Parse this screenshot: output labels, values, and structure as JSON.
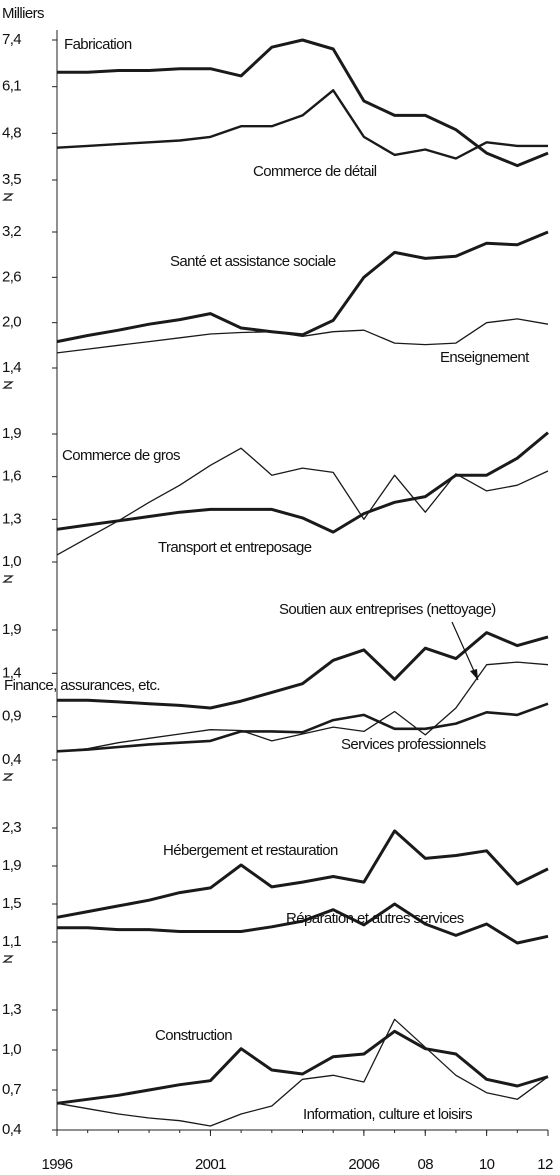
{
  "y_unit": "Milliers",
  "chart_data": [
    {
      "type": "line",
      "x": [
        1996,
        1997,
        1998,
        1999,
        2000,
        2001,
        2002,
        2003,
        2004,
        2005,
        2006,
        2007,
        2008,
        2009,
        2010,
        2011,
        2012
      ],
      "ylim": [
        3.5,
        7.4
      ],
      "yticks": [
        {
          "value": 3.5,
          "label": "3,5"
        },
        {
          "value": 4.8,
          "label": "4,8"
        },
        {
          "value": 6.1,
          "label": "6,1"
        },
        {
          "value": 7.4,
          "label": "7,4"
        }
      ],
      "series": [
        {
          "name": "Fabrication",
          "color": "#1a1a1a",
          "linewidth": 3,
          "values": [
            6.5,
            6.5,
            6.55,
            6.55,
            6.6,
            6.6,
            6.4,
            7.2,
            7.4,
            7.15,
            5.7,
            5.3,
            5.3,
            4.9,
            4.25,
            3.9,
            4.25
          ]
        },
        {
          "name": "Commerce de détail",
          "color": "#1a1a1a",
          "linewidth": 2.4,
          "values": [
            4.4,
            4.45,
            4.5,
            4.55,
            4.6,
            4.7,
            5.0,
            5.0,
            5.3,
            6.0,
            4.7,
            4.2,
            4.35,
            4.1,
            4.55,
            4.45,
            4.45
          ]
        }
      ]
    },
    {
      "type": "line",
      "x": [
        1996,
        1997,
        1998,
        1999,
        2000,
        2001,
        2002,
        2003,
        2004,
        2005,
        2006,
        2007,
        2008,
        2009,
        2010,
        2011,
        2012
      ],
      "ylim": [
        1.4,
        3.2
      ],
      "yticks": [
        {
          "value": 1.4,
          "label": "1,4"
        },
        {
          "value": 2.0,
          "label": "2,0"
        },
        {
          "value": 2.6,
          "label": "2,6"
        },
        {
          "value": 3.2,
          "label": "3,2"
        }
      ],
      "series": [
        {
          "name": "Santé et assistance sociale",
          "color": "#1a1a1a",
          "linewidth": 3,
          "values": [
            1.75,
            1.83,
            1.9,
            1.98,
            2.04,
            2.12,
            1.93,
            1.88,
            1.84,
            2.03,
            2.6,
            2.93,
            2.85,
            2.88,
            3.05,
            3.03,
            3.2
          ]
        },
        {
          "name": "Enseignement",
          "color": "#1a1a1a",
          "linewidth": 1.3,
          "values": [
            1.6,
            1.65,
            1.7,
            1.75,
            1.8,
            1.85,
            1.87,
            1.88,
            1.82,
            1.88,
            1.9,
            1.73,
            1.71,
            1.73,
            2.0,
            2.05,
            1.98
          ]
        }
      ]
    },
    {
      "type": "line",
      "x": [
        1996,
        1997,
        1998,
        1999,
        2000,
        2001,
        2002,
        2003,
        2004,
        2005,
        2006,
        2007,
        2008,
        2009,
        2010,
        2011,
        2012
      ],
      "ylim": [
        1.0,
        1.9
      ],
      "yticks": [
        {
          "value": 1.0,
          "label": "1,0"
        },
        {
          "value": 1.3,
          "label": "1,3"
        },
        {
          "value": 1.6,
          "label": "1,6"
        },
        {
          "value": 1.9,
          "label": "1,9"
        }
      ],
      "series": [
        {
          "name": "Commerce de gros",
          "color": "#1a1a1a",
          "linewidth": 1.3,
          "values": [
            1.05,
            1.17,
            1.29,
            1.42,
            1.54,
            1.68,
            1.8,
            1.61,
            1.66,
            1.63,
            1.3,
            1.61,
            1.35,
            1.62,
            1.5,
            1.54,
            1.64
          ]
        },
        {
          "name": "Transport et entreposage",
          "color": "#1a1a1a",
          "linewidth": 3,
          "values": [
            1.23,
            1.26,
            1.29,
            1.32,
            1.35,
            1.37,
            1.37,
            1.37,
            1.31,
            1.21,
            1.34,
            1.42,
            1.46,
            1.61,
            1.61,
            1.73,
            1.91
          ]
        }
      ]
    },
    {
      "type": "line",
      "x": [
        1996,
        1997,
        1998,
        1999,
        2000,
        2001,
        2002,
        2003,
        2004,
        2005,
        2006,
        2007,
        2008,
        2009,
        2010,
        2011,
        2012
      ],
      "ylim": [
        0.4,
        1.9
      ],
      "yticks": [
        {
          "value": 0.4,
          "label": "0,4"
        },
        {
          "value": 0.9,
          "label": "0,9"
        },
        {
          "value": 1.4,
          "label": "1,4"
        },
        {
          "value": 1.9,
          "label": "1,9"
        }
      ],
      "series": [
        {
          "name": "Finance, assurances, etc.",
          "color": "#1a1a1a",
          "linewidth": 3,
          "values": [
            1.09,
            1.09,
            1.07,
            1.05,
            1.03,
            1.0,
            1.08,
            1.18,
            1.28,
            1.55,
            1.67,
            1.33,
            1.69,
            1.57,
            1.87,
            1.72,
            1.82
          ]
        },
        {
          "name": "Soutien aux entreprises (nettoyage)",
          "color": "#1a1a1a",
          "linewidth": 1.3,
          "values": [
            0.5,
            0.53,
            0.6,
            0.65,
            0.7,
            0.75,
            0.74,
            0.62,
            0.7,
            0.78,
            0.73,
            0.96,
            0.69,
            1.0,
            1.5,
            1.53,
            1.5
          ]
        },
        {
          "name": "Services professionnels",
          "color": "#1a1a1a",
          "linewidth": 2.6,
          "values": [
            0.5,
            0.52,
            0.55,
            0.58,
            0.6,
            0.62,
            0.73,
            0.73,
            0.72,
            0.86,
            0.92,
            0.76,
            0.76,
            0.82,
            0.95,
            0.92,
            1.05
          ]
        }
      ]
    },
    {
      "type": "line",
      "x": [
        1996,
        1997,
        1998,
        1999,
        2000,
        2001,
        2002,
        2003,
        2004,
        2005,
        2006,
        2007,
        2008,
        2009,
        2010,
        2011,
        2012
      ],
      "ylim": [
        1.1,
        2.3
      ],
      "yticks": [
        {
          "value": 1.1,
          "label": "1,1"
        },
        {
          "value": 1.5,
          "label": "1,5"
        },
        {
          "value": 1.9,
          "label": "1,9"
        },
        {
          "value": 2.3,
          "label": "2,3"
        }
      ],
      "series": [
        {
          "name": "Hébergement et restauration",
          "color": "#1a1a1a",
          "linewidth": 3,
          "values": [
            1.36,
            1.42,
            1.48,
            1.54,
            1.62,
            1.67,
            1.91,
            1.68,
            1.73,
            1.79,
            1.73,
            2.27,
            1.98,
            2.01,
            2.06,
            1.71,
            1.87
          ]
        },
        {
          "name": "Réparation et autres services",
          "color": "#1a1a1a",
          "linewidth": 3,
          "values": [
            1.25,
            1.25,
            1.23,
            1.23,
            1.21,
            1.21,
            1.21,
            1.26,
            1.32,
            1.44,
            1.28,
            1.5,
            1.29,
            1.17,
            1.29,
            1.09,
            1.16
          ]
        }
      ]
    },
    {
      "type": "line",
      "x": [
        1996,
        1997,
        1998,
        1999,
        2000,
        2001,
        2002,
        2003,
        2004,
        2005,
        2006,
        2007,
        2008,
        2009,
        2010,
        2011,
        2012
      ],
      "ylim": [
        0.4,
        1.3
      ],
      "yticks": [
        {
          "value": 0.4,
          "label": "0,4"
        },
        {
          "value": 0.7,
          "label": "0,7"
        },
        {
          "value": 1.0,
          "label": "1,0"
        },
        {
          "value": 1.3,
          "label": "1,3"
        }
      ],
      "xticks": [
        1996,
        2001,
        2006,
        {
          "value": 2008,
          "label": "08"
        },
        {
          "value": 2010,
          "label": "10"
        },
        {
          "value": 2012,
          "label": "12"
        }
      ],
      "series": [
        {
          "name": "Construction",
          "color": "#1a1a1a",
          "linewidth": 3,
          "values": [
            0.6,
            0.63,
            0.66,
            0.7,
            0.74,
            0.77,
            1.01,
            0.85,
            0.82,
            0.95,
            0.97,
            1.14,
            1.01,
            0.97,
            0.78,
            0.73,
            0.8
          ]
        },
        {
          "name": "Information, culture et loisirs",
          "color": "#1a1a1a",
          "linewidth": 1.3,
          "values": [
            0.6,
            0.56,
            0.52,
            0.49,
            0.47,
            0.43,
            0.52,
            0.58,
            0.78,
            0.81,
            0.76,
            1.23,
            1.02,
            0.81,
            0.68,
            0.63,
            0.8
          ]
        }
      ]
    }
  ]
}
